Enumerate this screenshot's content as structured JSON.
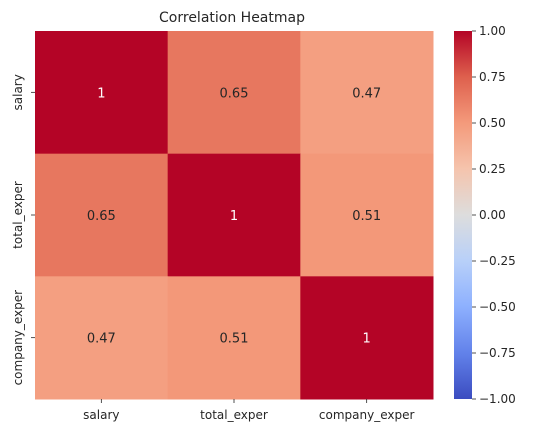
{
  "chart_data": {
    "type": "heatmap",
    "title": "Correlation Heatmap",
    "xlabel": "",
    "ylabel": "",
    "x_categories": [
      "salary",
      "total_exper",
      "company_exper"
    ],
    "y_categories": [
      "salary",
      "total_exper",
      "company_exper"
    ],
    "values": [
      [
        1,
        0.65,
        0.47
      ],
      [
        0.65,
        1,
        0.51
      ],
      [
        0.47,
        0.51,
        1
      ]
    ],
    "annotations": [
      [
        "1",
        "0.65",
        "0.47"
      ],
      [
        "0.65",
        "1",
        "0.51"
      ],
      [
        "0.47",
        "0.51",
        "1"
      ]
    ],
    "colormap": "coolwarm",
    "colorbar": {
      "min": -1.0,
      "max": 1.0,
      "ticks": [
        1.0,
        0.75,
        0.5,
        0.25,
        0.0,
        -0.25,
        -0.5,
        -0.75,
        -1.0
      ],
      "tick_labels": [
        "1.00",
        "0.75",
        "0.50",
        "0.25",
        "0.00",
        "−0.25",
        "−0.50",
        "−0.75",
        "−1.00"
      ]
    },
    "grid": false,
    "legend": "colorbar-right"
  }
}
